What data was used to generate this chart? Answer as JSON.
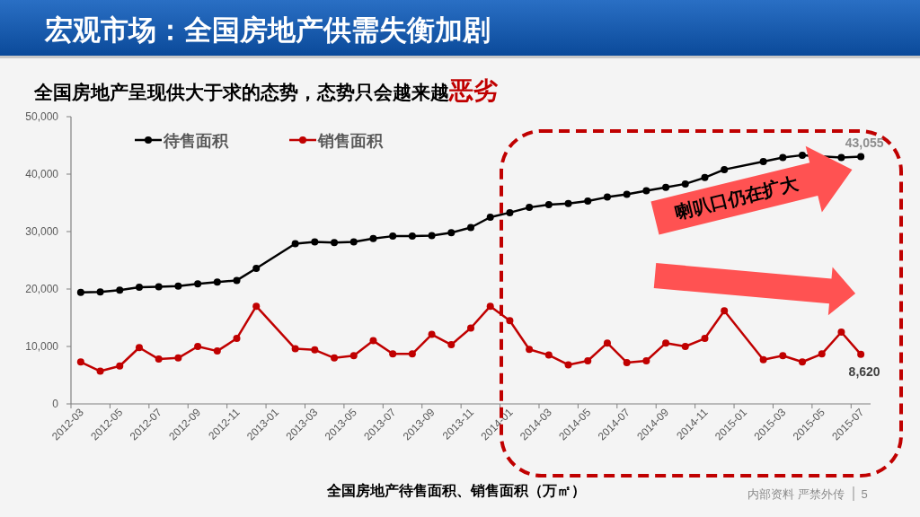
{
  "chart_data": {
    "type": "line",
    "title": "宏观市场：全国房地产供需失衡加剧",
    "subtitle": "全国房地产呈现供大于求的态势，态势只会越来越**恶劣**",
    "xlabel": "全国房地产待售面积、销售面积（万㎡）",
    "categories": [
      "2012-03",
      null,
      "2012-05",
      null,
      "2012-07",
      null,
      "2012-09",
      null,
      "2012-11",
      null,
      "2013-01",
      null,
      "2013-03",
      null,
      "2013-05",
      null,
      "2013-07",
      null,
      "2013-09",
      null,
      "2013-11",
      null,
      "2014-01",
      null,
      "2014-03",
      null,
      "2014-05",
      null,
      "2014-07",
      null,
      "2014-09",
      null,
      "2014-11",
      null,
      "2015-01",
      null,
      "2015-03",
      null,
      "2015-05",
      null,
      "2015-07"
    ],
    "series": [
      {
        "name": "待售面积",
        "color": "#000000",
        "values": [
          19400,
          19500,
          19800,
          20300,
          20400,
          20500,
          20900,
          21200,
          21500,
          23600,
          null,
          27900,
          28200,
          28100,
          28200,
          28800,
          29200,
          29200,
          29300,
          29800,
          30700,
          32500,
          33300,
          34200,
          34700,
          34900,
          35300,
          36000,
          36500,
          37100,
          37700,
          38300,
          39400,
          40800,
          null,
          42200,
          42900,
          43300,
          null,
          42900,
          43055
        ],
        "value_labels": [
          null,
          null,
          null,
          null,
          null,
          null,
          null,
          null,
          null,
          null,
          null,
          null,
          null,
          null,
          null,
          null,
          null,
          null,
          null,
          null,
          null,
          null,
          null,
          null,
          null,
          null,
          null,
          null,
          null,
          null,
          null,
          null,
          null,
          null,
          null,
          null,
          null,
          null,
          null,
          null,
          "43,055"
        ]
      },
      {
        "name": "销售面积",
        "color": "#c00000",
        "values": [
          7300,
          5700,
          6600,
          9800,
          7800,
          8000,
          10000,
          9200,
          11400,
          17000,
          null,
          9600,
          9400,
          8000,
          8400,
          11000,
          8700,
          8700,
          12100,
          10300,
          13200,
          17000,
          14500,
          9500,
          8500,
          6800,
          7500,
          10600,
          7200,
          7500,
          10600,
          10000,
          11400,
          16200,
          null,
          7700,
          8400,
          7300,
          8700,
          12500,
          8620
        ],
        "value_labels": [
          null,
          null,
          null,
          null,
          null,
          null,
          null,
          null,
          null,
          null,
          null,
          null,
          null,
          null,
          null,
          null,
          null,
          null,
          null,
          null,
          null,
          null,
          null,
          null,
          null,
          null,
          null,
          null,
          null,
          null,
          null,
          null,
          null,
          null,
          null,
          null,
          null,
          null,
          null,
          null,
          "8,620"
        ]
      }
    ],
    "ylim": [
      0,
      50000
    ],
    "yticks": [
      0,
      {
        "value": 10000,
        "label": "10,000"
      },
      {
        "value": 20000,
        "label": "20,000"
      },
      {
        "value": 30000,
        "label": "30,000"
      },
      {
        "value": 40000,
        "label": "40,000"
      },
      {
        "value": 50000,
        "label": "50,000"
      }
    ],
    "grid": false,
    "legend": "top left",
    "marker": "circle",
    "line_style": "solid",
    "annotations": [
      "喇叭口仍在扩大",
      "内部资料 严禁外传",
      "5"
    ]
  }
}
